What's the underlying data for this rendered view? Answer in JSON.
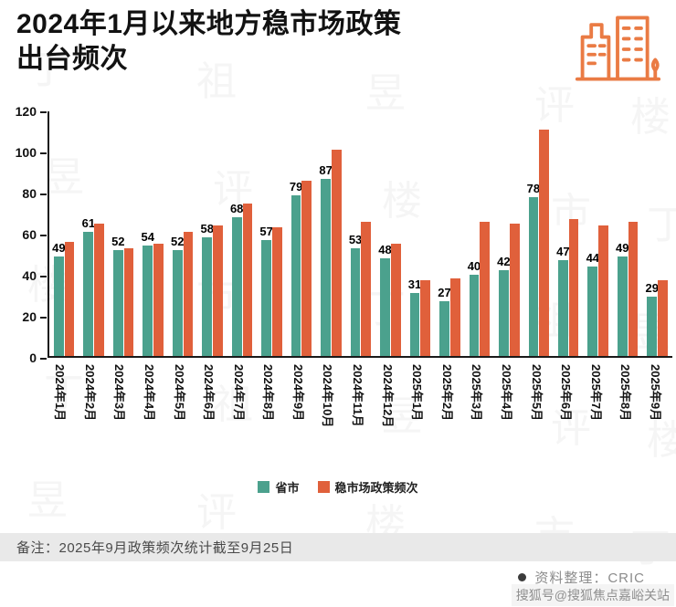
{
  "title": "2024年1月以来地方稳市场政策\n出台频次",
  "watermark_text": "丁祖昱评楼市",
  "chart_data": {
    "type": "bar",
    "title": "2024年1月以来地方稳市场政策出台频次",
    "categories": [
      "2024年1月",
      "2024年2月",
      "2024年3月",
      "2024年4月",
      "2024年5月",
      "2024年6月",
      "2024年7月",
      "2024年8月",
      "2024年9月",
      "2024年10月",
      "2024年11月",
      "2024年12月",
      "2025年1月",
      "2025年2月",
      "2025年3月",
      "2025年4月",
      "2025年5月",
      "2025年6月",
      "2025年7月",
      "2025年8月",
      "2025年9月"
    ],
    "series": [
      {
        "name": "省市",
        "color": "#4BA18D",
        "value_labels": true,
        "values": [
          49,
          61,
          52,
          54,
          52,
          58,
          68,
          57,
          79,
          87,
          53,
          48,
          31,
          27,
          40,
          42,
          78,
          47,
          44,
          49,
          29
        ]
      },
      {
        "name": "稳市场政策频次",
        "color": "#E0603B",
        "value_labels": false,
        "values": [
          56,
          65,
          53,
          55,
          61,
          64,
          75,
          63,
          86,
          101,
          66,
          55,
          37,
          38,
          66,
          65,
          111,
          67,
          64,
          66,
          37
        ]
      }
    ],
    "ylim": [
      0,
      120
    ],
    "yticks": [
      120,
      100,
      80,
      60,
      40,
      20,
      0
    ],
    "grid": false,
    "legend_position": "bottom"
  },
  "footer": {
    "note": "备注：2025年9月政策频次统计截至9月25日",
    "source": "资料整理：CRIC",
    "sohu_watermark": "搜狐号@搜狐焦点嘉峪关站"
  },
  "colors": {
    "green": "#4BA18D",
    "orange": "#E0603B",
    "brand_orange": "#EA7B44",
    "axis": "#1a1a1a"
  }
}
